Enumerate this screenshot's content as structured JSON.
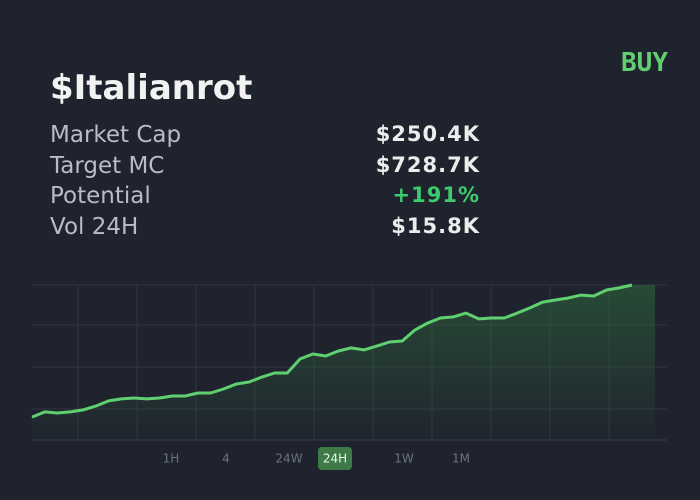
{
  "header": {
    "title": "$Italianrot",
    "action": "BUY"
  },
  "stats": [
    {
      "label": "Market Cap",
      "value": "$250.4K"
    },
    {
      "label": "Target MC",
      "value": "$728.7K"
    },
    {
      "label": "Potential",
      "value": "+191%"
    },
    {
      "label": "Vol 24H",
      "value": "$15.8K"
    }
  ],
  "timeframes": [
    "1H",
    "4",
    "24W",
    "24H",
    "1W",
    "1M"
  ],
  "active_timeframe": 3,
  "chart_data": {
    "type": "line",
    "color": "#5fcf6f",
    "values": [
      14.8,
      18.1,
      17.4,
      18.1,
      19.4,
      21.9,
      25.2,
      26.5,
      27.1,
      26.5,
      27.1,
      28.4,
      28.4,
      30.3,
      30.3,
      32.9,
      36.1,
      37.4,
      40.6,
      43.2,
      43.2,
      52.3,
      55.5,
      54.2,
      57.4,
      59.4,
      58.1,
      60.6,
      63.2,
      63.9,
      71,
      75.5,
      78.7,
      79.4,
      81.9,
      78.1,
      78.7,
      78.7,
      81.9,
      85.2,
      89,
      90.3,
      91.6,
      93.5,
      92.9,
      96.8,
      98.1,
      100
    ],
    "ylim": [
      0,
      100
    ]
  }
}
